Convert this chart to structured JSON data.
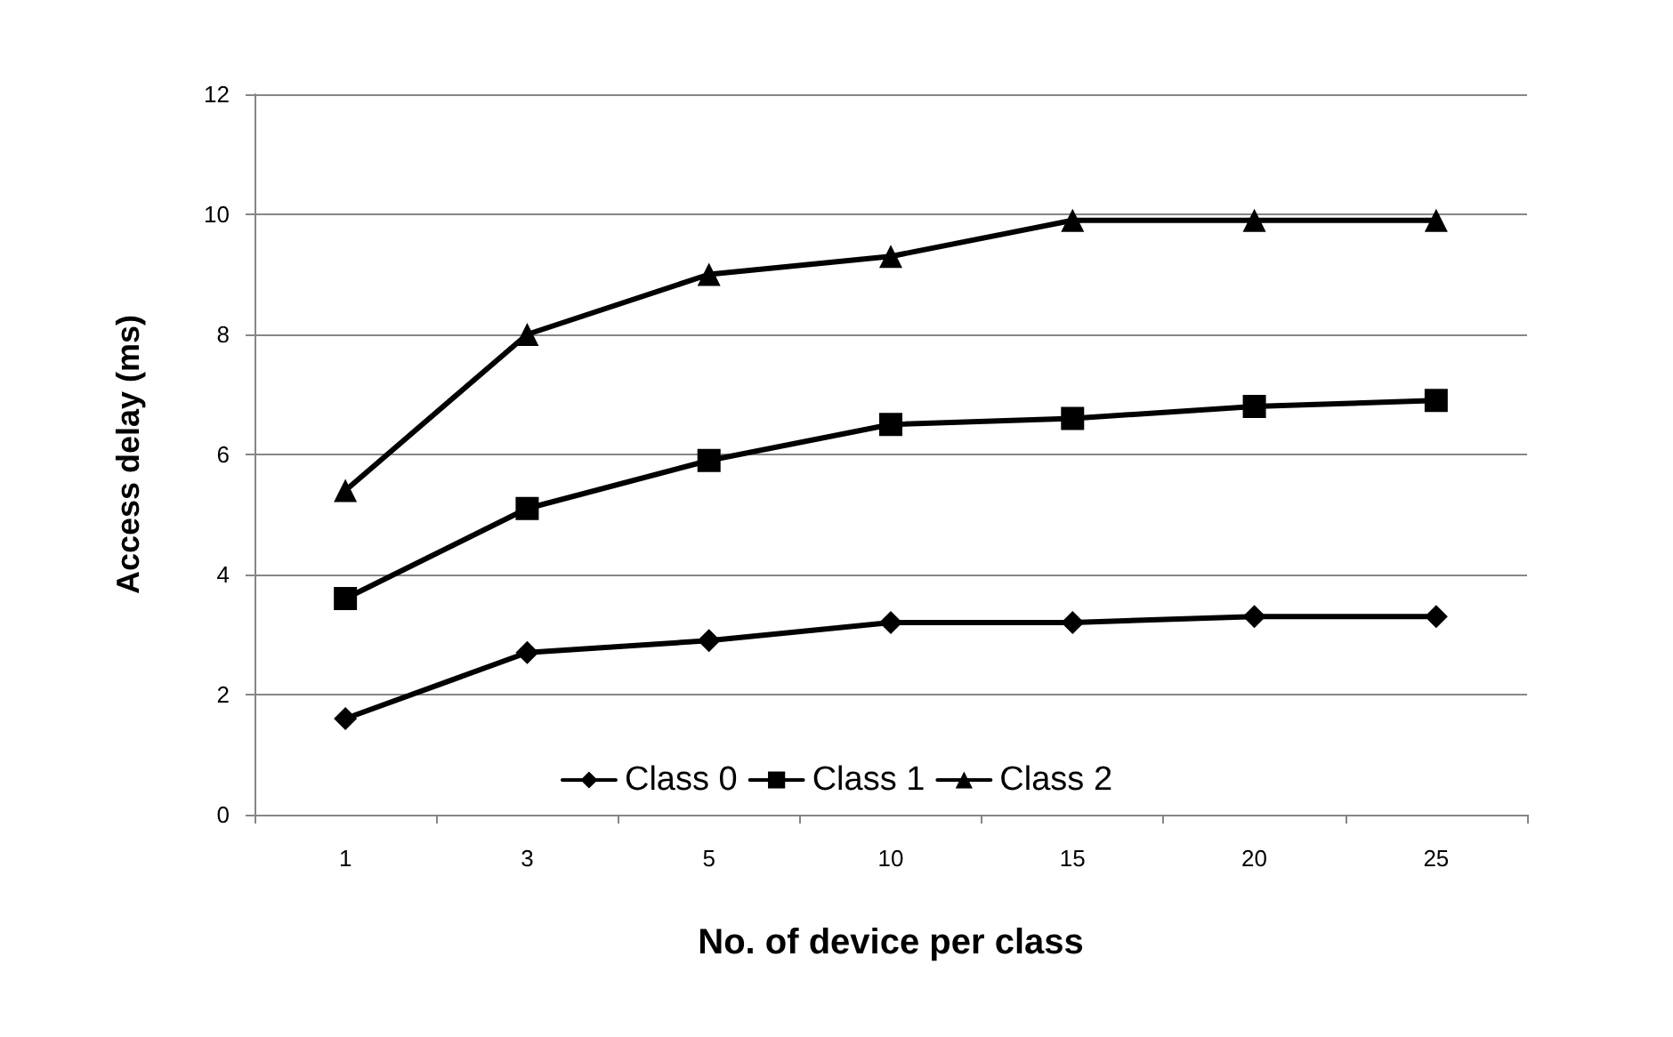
{
  "chart_data": {
    "type": "line",
    "xlabel": "No. of device per class",
    "ylabel": "Access delay (ms)",
    "categories": [
      "1",
      "3",
      "5",
      "10",
      "15",
      "20",
      "25"
    ],
    "series": [
      {
        "name": "Class 0",
        "color": "#000000",
        "marker": "diamond",
        "values": [
          1.6,
          2.7,
          2.9,
          3.2,
          3.2,
          3.3,
          3.3
        ]
      },
      {
        "name": "Class 1",
        "color": "#000000",
        "marker": "square",
        "values": [
          3.6,
          5.1,
          5.9,
          6.5,
          6.6,
          6.8,
          6.9
        ]
      },
      {
        "name": "Class 2",
        "color": "#000000",
        "marker": "triangle",
        "values": [
          5.4,
          8.0,
          9.0,
          9.3,
          9.9,
          9.9,
          9.9
        ]
      }
    ],
    "ylim": [
      0,
      12
    ],
    "yticks": [
      0,
      2,
      4,
      6,
      8,
      10,
      12
    ],
    "grid": "y",
    "legend": "bottom",
    "line_style": "solid"
  }
}
